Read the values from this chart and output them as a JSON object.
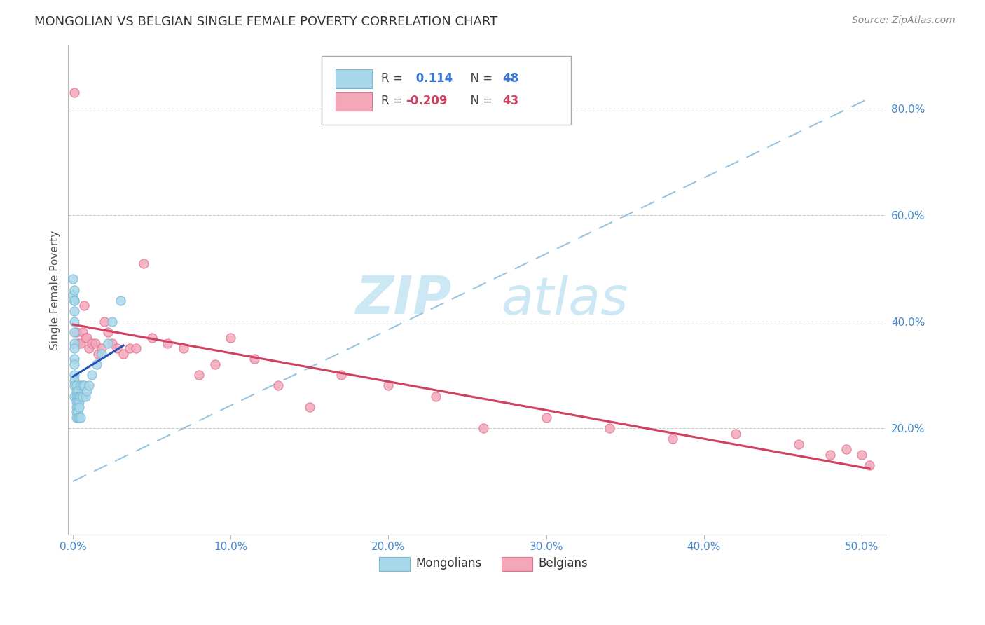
{
  "title": "MONGOLIAN VS BELGIAN SINGLE FEMALE POVERTY CORRELATION CHART",
  "source": "Source: ZipAtlas.com",
  "ylabel": "Single Female Poverty",
  "right_ytick_labels": [
    "20.0%",
    "40.0%",
    "60.0%",
    "80.0%"
  ],
  "right_ytick_values": [
    0.2,
    0.4,
    0.6,
    0.8
  ],
  "xtick_labels": [
    "0.0%",
    "10.0%",
    "20.0%",
    "30.0%",
    "40.0%",
    "50.0%"
  ],
  "xtick_values": [
    0.0,
    0.1,
    0.2,
    0.3,
    0.4,
    0.5
  ],
  "xlim": [
    -0.003,
    0.515
  ],
  "ylim": [
    0.0,
    0.92
  ],
  "mongolian_color": "#a8d8ea",
  "belgian_color": "#f4a7b9",
  "mongolian_edge_color": "#7ab8d4",
  "belgian_edge_color": "#e07090",
  "trend_mongolian_color": "#2255bb",
  "trend_belgian_color": "#d04060",
  "dashed_line_color": "#99c4e0",
  "R_mongolian": 0.114,
  "N_mongolian": 48,
  "R_belgian": -0.209,
  "N_belgian": 43,
  "legend_label_mongolian": "Mongolians",
  "legend_label_belgian": "Belgians",
  "background_color": "#ffffff",
  "grid_color": "#cccccc",
  "title_color": "#333333",
  "axis_label_color": "#555555",
  "mongolian_x": [
    0.0,
    0.0,
    0.001,
    0.001,
    0.001,
    0.001,
    0.001,
    0.001,
    0.001,
    0.001,
    0.001,
    0.001,
    0.001,
    0.001,
    0.001,
    0.001,
    0.002,
    0.002,
    0.002,
    0.002,
    0.002,
    0.002,
    0.002,
    0.003,
    0.003,
    0.003,
    0.003,
    0.003,
    0.003,
    0.004,
    0.004,
    0.004,
    0.004,
    0.005,
    0.005,
    0.005,
    0.006,
    0.006,
    0.007,
    0.008,
    0.009,
    0.01,
    0.012,
    0.015,
    0.018,
    0.022,
    0.025,
    0.03
  ],
  "mongolian_y": [
    0.48,
    0.45,
    0.46,
    0.44,
    0.44,
    0.42,
    0.4,
    0.38,
    0.36,
    0.35,
    0.33,
    0.32,
    0.3,
    0.29,
    0.28,
    0.26,
    0.28,
    0.27,
    0.26,
    0.25,
    0.24,
    0.23,
    0.22,
    0.27,
    0.26,
    0.25,
    0.24,
    0.23,
    0.22,
    0.26,
    0.25,
    0.24,
    0.22,
    0.28,
    0.26,
    0.22,
    0.28,
    0.26,
    0.28,
    0.26,
    0.27,
    0.28,
    0.3,
    0.32,
    0.34,
    0.36,
    0.4,
    0.44
  ],
  "belgian_x": [
    0.001,
    0.002,
    0.003,
    0.005,
    0.006,
    0.007,
    0.008,
    0.009,
    0.01,
    0.012,
    0.014,
    0.016,
    0.018,
    0.02,
    0.022,
    0.025,
    0.028,
    0.032,
    0.036,
    0.04,
    0.045,
    0.05,
    0.06,
    0.07,
    0.08,
    0.09,
    0.1,
    0.115,
    0.13,
    0.15,
    0.17,
    0.2,
    0.23,
    0.26,
    0.3,
    0.34,
    0.38,
    0.42,
    0.46,
    0.48,
    0.49,
    0.5,
    0.505
  ],
  "belgian_y": [
    0.83,
    0.38,
    0.36,
    0.36,
    0.38,
    0.43,
    0.37,
    0.37,
    0.35,
    0.36,
    0.36,
    0.34,
    0.35,
    0.4,
    0.38,
    0.36,
    0.35,
    0.34,
    0.35,
    0.35,
    0.51,
    0.37,
    0.36,
    0.35,
    0.3,
    0.32,
    0.37,
    0.33,
    0.28,
    0.24,
    0.3,
    0.28,
    0.26,
    0.2,
    0.22,
    0.2,
    0.18,
    0.19,
    0.17,
    0.15,
    0.16,
    0.15,
    0.13
  ],
  "watermark_zip": "ZIP",
  "watermark_atlas": "atlas",
  "watermark_color": "#cde8f5",
  "marker_size": 90,
  "legend_r_color_mon": "#3377dd",
  "legend_n_color_mon": "#3377dd",
  "legend_r_color_bel": "#d04060",
  "legend_n_color_bel": "#d04060"
}
